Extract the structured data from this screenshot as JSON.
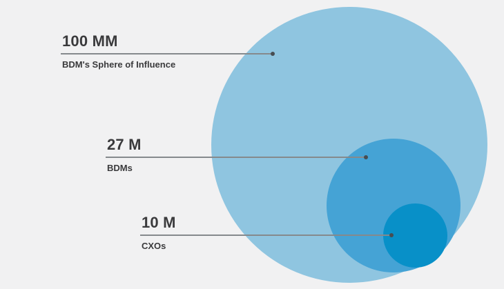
{
  "background_color": "#f1f1f2",
  "chart_data": {
    "type": "bubble",
    "subtype": "nested-proportional-circles",
    "title": "",
    "legend_position": "left-annotations",
    "annotation_line_color": "#85898c",
    "annotation_dot_color": "#474d52",
    "text_color": "#3a3a3c",
    "series": [
      {
        "label": "100 MM",
        "sublabel": "BDM's Sphere of Influence",
        "value_millions": 100,
        "color": "#8fc5e0"
      },
      {
        "label": "27 M",
        "sublabel": "BDMs",
        "value_millions": 27,
        "color": "#45a3d5"
      },
      {
        "label": "10 M",
        "sublabel": "CXOs",
        "value_millions": 10,
        "color": "#0890c8"
      }
    ]
  }
}
